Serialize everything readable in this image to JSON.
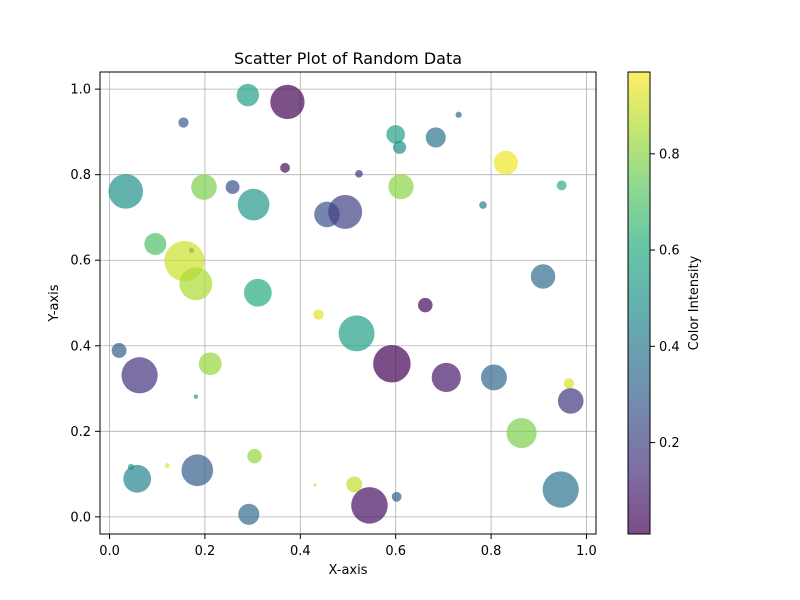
{
  "chart_data": {
    "type": "scatter",
    "title": "Scatter Plot of Random Data",
    "xlabel": "X-axis",
    "ylabel": "Y-axis",
    "xlim": [
      -0.02,
      1.02
    ],
    "ylim": [
      -0.04,
      1.04
    ],
    "xticks": [
      0.0,
      0.2,
      0.4,
      0.6,
      0.8,
      1.0
    ],
    "xtick_labels": [
      "0.0",
      "0.2",
      "0.4",
      "0.6",
      "0.8",
      "1.0"
    ],
    "yticks": [
      0.0,
      0.2,
      0.4,
      0.6,
      0.8,
      1.0
    ],
    "ytick_labels": [
      "0.0",
      "0.2",
      "0.4",
      "0.6",
      "0.8",
      "1.0"
    ],
    "grid": true,
    "marker_alpha": 0.7,
    "colormap": "viridis",
    "colorbar": {
      "label": "Color Intensity",
      "range": [
        0.01,
        0.97
      ],
      "ticks": [
        0.2,
        0.4,
        0.6,
        0.8
      ],
      "tick_labels": [
        "0.2",
        "0.4",
        "0.6",
        "0.8"
      ]
    },
    "points": [
      {
        "x": 0.373,
        "y": 0.97,
        "size": 610,
        "c": 0.02
      },
      {
        "x": 0.29,
        "y": 0.986,
        "size": 260,
        "c": 0.55
      },
      {
        "x": 0.155,
        "y": 0.922,
        "size": 55,
        "c": 0.3
      },
      {
        "x": 0.732,
        "y": 0.94,
        "size": 20,
        "c": 0.35
      },
      {
        "x": 0.6,
        "y": 0.894,
        "size": 180,
        "c": 0.55
      },
      {
        "x": 0.608,
        "y": 0.864,
        "size": 90,
        "c": 0.48
      },
      {
        "x": 0.684,
        "y": 0.887,
        "size": 210,
        "c": 0.38
      },
      {
        "x": 0.831,
        "y": 0.828,
        "size": 300,
        "c": 0.95
      },
      {
        "x": 0.368,
        "y": 0.816,
        "size": 50,
        "c": 0.05
      },
      {
        "x": 0.523,
        "y": 0.802,
        "size": 30,
        "c": 0.15
      },
      {
        "x": 0.948,
        "y": 0.775,
        "size": 50,
        "c": 0.62
      },
      {
        "x": 0.034,
        "y": 0.761,
        "size": 620,
        "c": 0.5
      },
      {
        "x": 0.198,
        "y": 0.771,
        "size": 340,
        "c": 0.78
      },
      {
        "x": 0.258,
        "y": 0.771,
        "size": 100,
        "c": 0.25
      },
      {
        "x": 0.611,
        "y": 0.772,
        "size": 330,
        "c": 0.8
      },
      {
        "x": 0.783,
        "y": 0.729,
        "size": 30,
        "c": 0.42
      },
      {
        "x": 0.302,
        "y": 0.73,
        "size": 520,
        "c": 0.52
      },
      {
        "x": 0.456,
        "y": 0.707,
        "size": 340,
        "c": 0.25
      },
      {
        "x": 0.494,
        "y": 0.713,
        "size": 600,
        "c": 0.2
      },
      {
        "x": 0.096,
        "y": 0.638,
        "size": 250,
        "c": 0.7
      },
      {
        "x": 0.172,
        "y": 0.623,
        "size": 15,
        "c": 0.2
      },
      {
        "x": 0.157,
        "y": 0.598,
        "size": 840,
        "c": 0.9
      },
      {
        "x": 0.181,
        "y": 0.545,
        "size": 560,
        "c": 0.85
      },
      {
        "x": 0.311,
        "y": 0.524,
        "size": 400,
        "c": 0.6
      },
      {
        "x": 0.438,
        "y": 0.473,
        "size": 55,
        "c": 0.93
      },
      {
        "x": 0.662,
        "y": 0.495,
        "size": 110,
        "c": 0.03
      },
      {
        "x": 0.909,
        "y": 0.562,
        "size": 310,
        "c": 0.35
      },
      {
        "x": 0.518,
        "y": 0.429,
        "size": 670,
        "c": 0.55
      },
      {
        "x": 0.02,
        "y": 0.389,
        "size": 115,
        "c": 0.3
      },
      {
        "x": 0.063,
        "y": 0.331,
        "size": 680,
        "c": 0.15
      },
      {
        "x": 0.211,
        "y": 0.358,
        "size": 270,
        "c": 0.82
      },
      {
        "x": 0.592,
        "y": 0.358,
        "size": 730,
        "c": 0.01
      },
      {
        "x": 0.706,
        "y": 0.326,
        "size": 440,
        "c": 0.08
      },
      {
        "x": 0.806,
        "y": 0.326,
        "size": 350,
        "c": 0.33
      },
      {
        "x": 0.963,
        "y": 0.312,
        "size": 55,
        "c": 0.92
      },
      {
        "x": 0.967,
        "y": 0.271,
        "size": 340,
        "c": 0.17
      },
      {
        "x": 0.181,
        "y": 0.281,
        "size": 10,
        "c": 0.55
      },
      {
        "x": 0.864,
        "y": 0.196,
        "size": 470,
        "c": 0.78
      },
      {
        "x": 0.304,
        "y": 0.142,
        "size": 110,
        "c": 0.82
      },
      {
        "x": 0.045,
        "y": 0.117,
        "size": 20,
        "c": 0.6
      },
      {
        "x": 0.121,
        "y": 0.12,
        "size": 12,
        "c": 0.93
      },
      {
        "x": 0.058,
        "y": 0.089,
        "size": 400,
        "c": 0.45
      },
      {
        "x": 0.184,
        "y": 0.109,
        "size": 520,
        "c": 0.3
      },
      {
        "x": 0.431,
        "y": 0.075,
        "size": 5,
        "c": 0.9
      },
      {
        "x": 0.513,
        "y": 0.076,
        "size": 130,
        "c": 0.88
      },
      {
        "x": 0.545,
        "y": 0.027,
        "size": 690,
        "c": 0.05
      },
      {
        "x": 0.602,
        "y": 0.047,
        "size": 50,
        "c": 0.3
      },
      {
        "x": 0.292,
        "y": 0.006,
        "size": 230,
        "c": 0.35
      },
      {
        "x": 0.946,
        "y": 0.064,
        "size": 680,
        "c": 0.38
      }
    ]
  }
}
